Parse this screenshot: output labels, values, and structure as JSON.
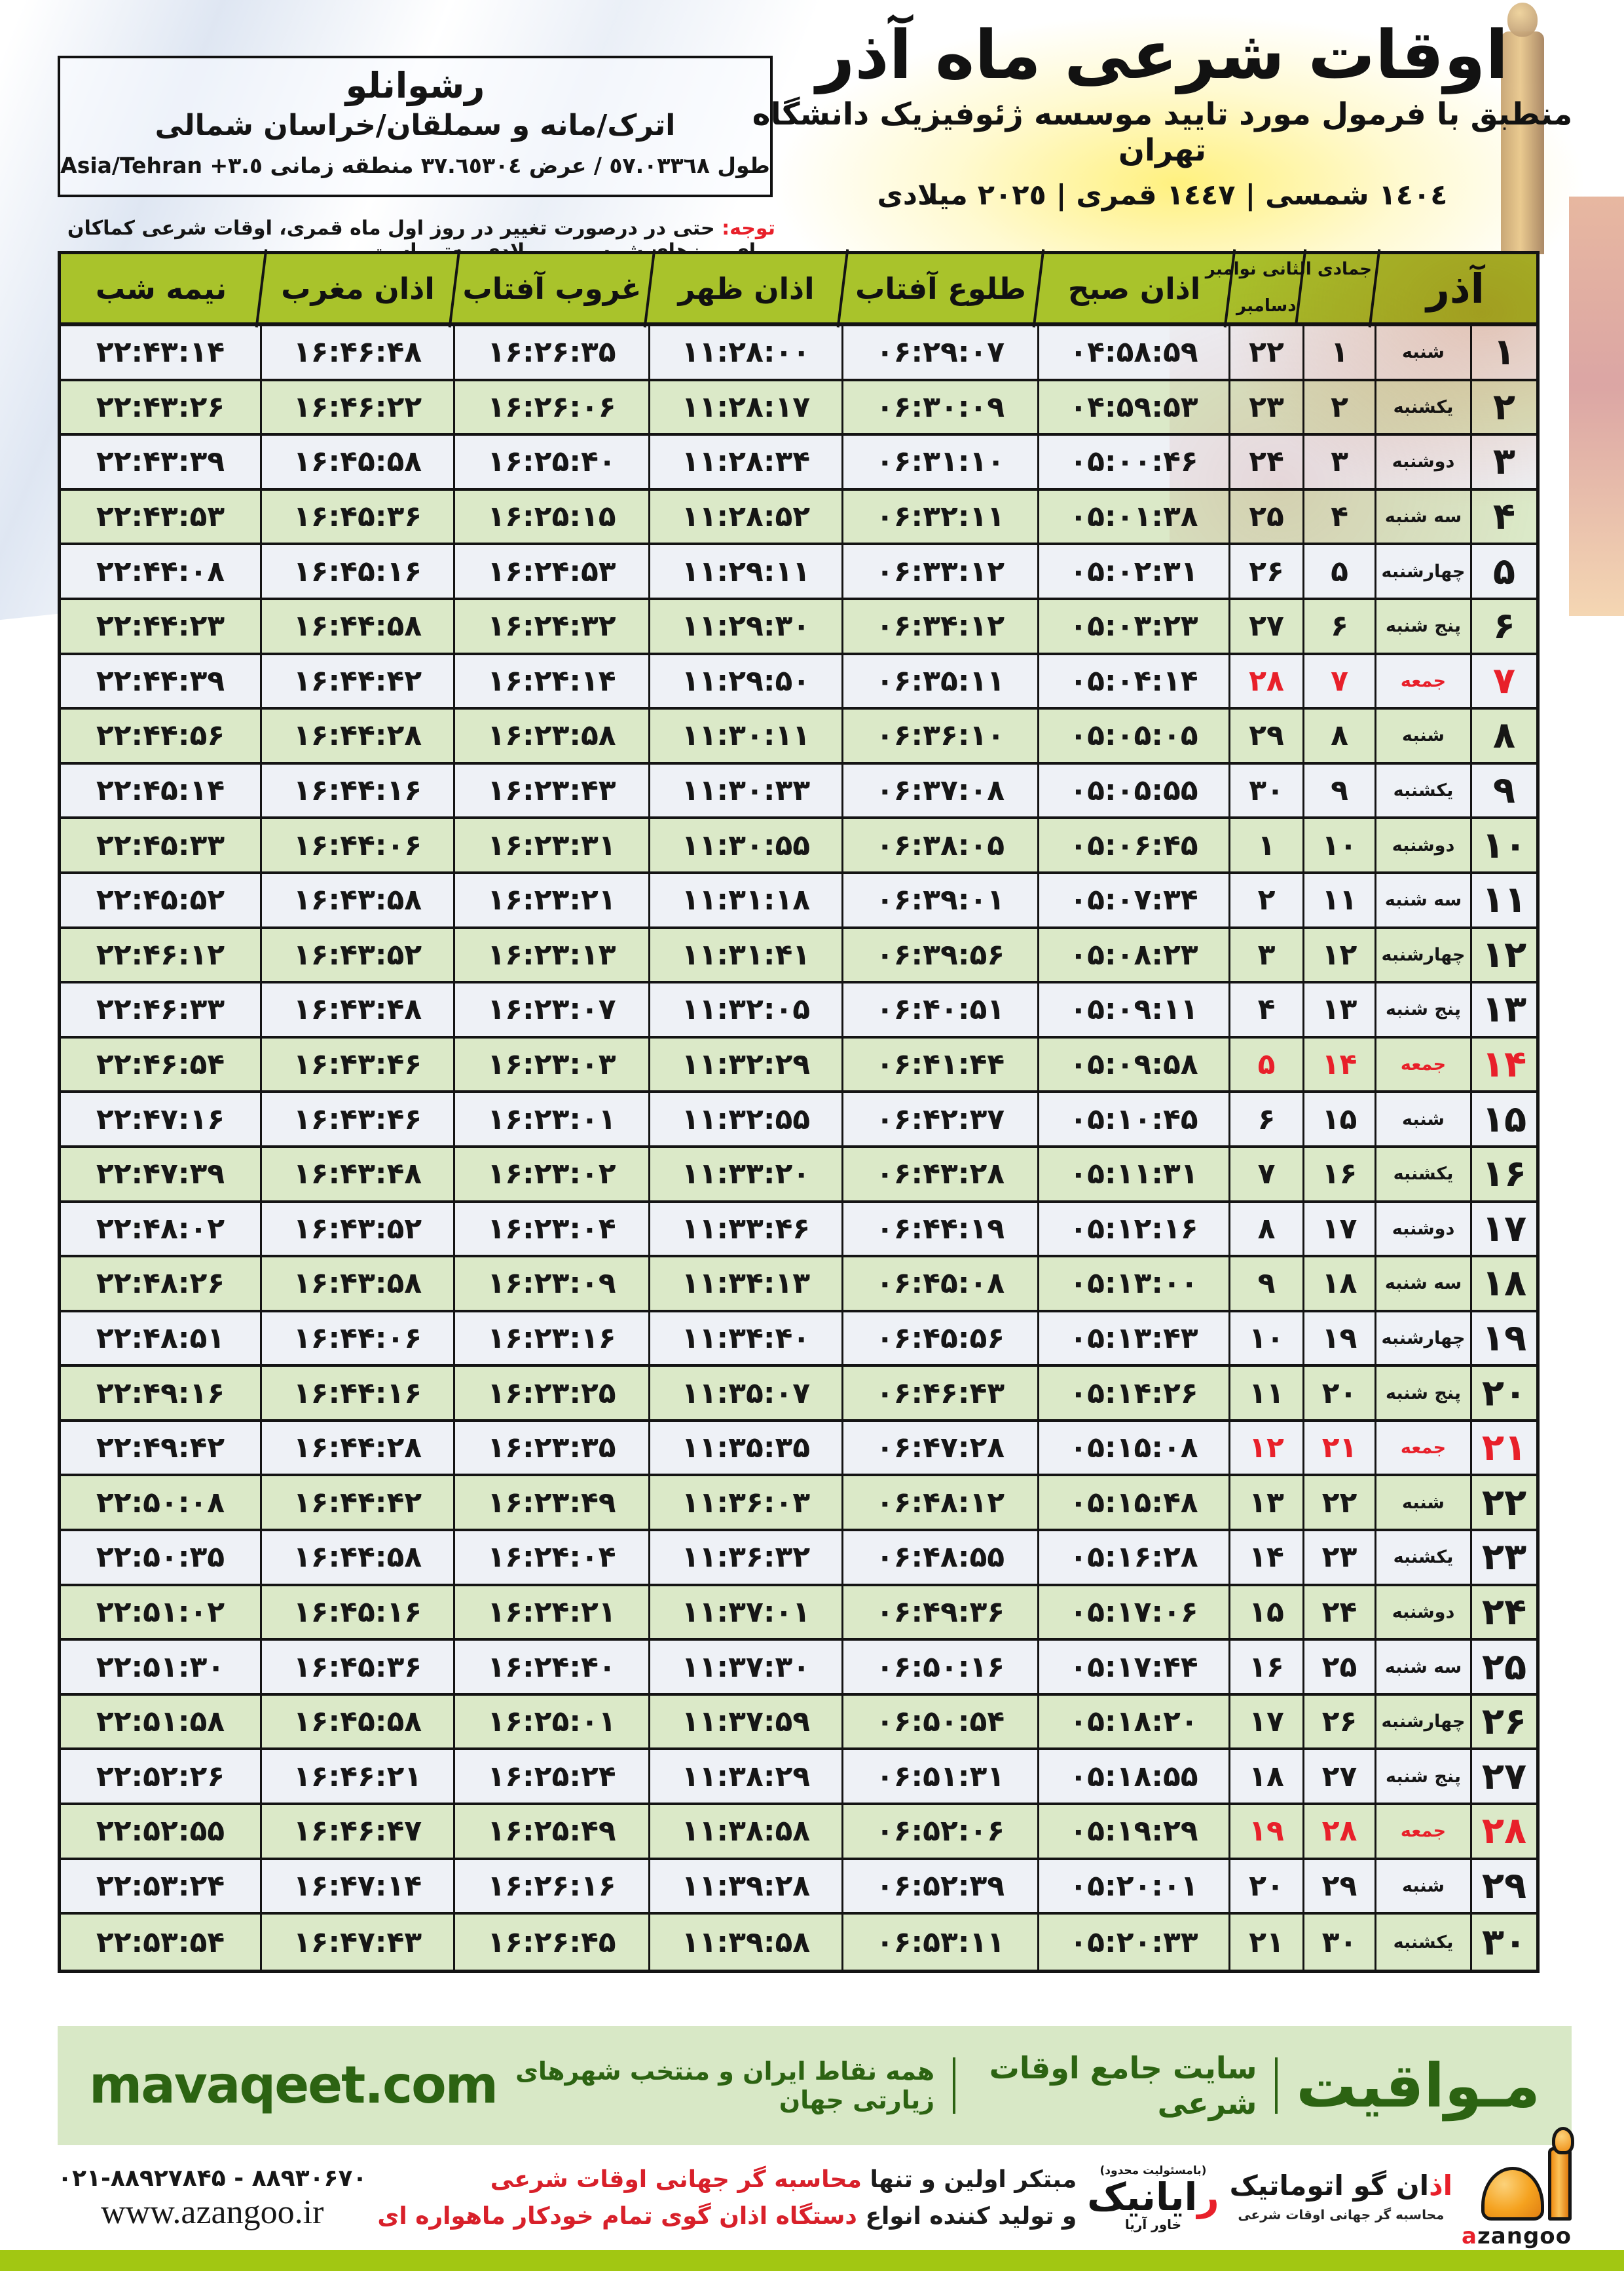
{
  "title": {
    "main": "اوقات شرعی ماه آذر",
    "subtitle": "منطبق با فرمول مورد تایید موسسه ژئوفیزیک دانشگاه تهران",
    "dates": "١٤٠٤ شمسی | ١٤٤٧ قمری | ٢٠٢٥ میلادی"
  },
  "location": {
    "name": "رشوانلو",
    "region": "اترک/مانه و سملقان/خراسان شمالی",
    "coords_fa": "طول ٥٧.٠٣٣٦٨ / عرض ٣٧.٦٥٣٠٤ منطقه زمانی",
    "timezone": "Asia/Tehran +٣.٥"
  },
  "note": {
    "label": "توجه:",
    "text": " حتی در درصورت تغییر در روز اول ماه قمری، اوقات شرعی کماکان برای روزهای شمسی و میلادی معتبر است."
  },
  "table": {
    "month_label": "آذر",
    "hijri_label": "جمادی الثانی",
    "greg_top": "نوامبر",
    "greg_bottom": "دسامبر",
    "columns": {
      "sobh": "اذان صبح",
      "tolu": "طلوع آفتاب",
      "zohr": "اذان ظهر",
      "ghorub": "غروب آفتاب",
      "maghreb": "اذان مغرب",
      "nimeshab": "نیمه شب"
    },
    "rows": [
      {
        "day": "۱",
        "weekday": "شنبه",
        "hijri": "۱",
        "greg": "۲۲",
        "sobh": "۰۴:۵۸:۵۹",
        "tolu": "۰۶:۲۹:۰۷",
        "zohr": "۱۱:۲۸:۰۰",
        "ghorub": "۱۶:۲۶:۳۵",
        "maghreb": "۱۶:۴۶:۴۸",
        "nimeshab": "۲۲:۴۳:۱۴",
        "friday": false
      },
      {
        "day": "۲",
        "weekday": "یکشنبه",
        "hijri": "۲",
        "greg": "۲۳",
        "sobh": "۰۴:۵۹:۵۳",
        "tolu": "۰۶:۳۰:۰۹",
        "zohr": "۱۱:۲۸:۱۷",
        "ghorub": "۱۶:۲۶:۰۶",
        "maghreb": "۱۶:۴۶:۲۲",
        "nimeshab": "۲۲:۴۳:۲۶",
        "friday": false
      },
      {
        "day": "۳",
        "weekday": "دوشنبه",
        "hijri": "۳",
        "greg": "۲۴",
        "sobh": "۰۵:۰۰:۴۶",
        "tolu": "۰۶:۳۱:۱۰",
        "zohr": "۱۱:۲۸:۳۴",
        "ghorub": "۱۶:۲۵:۴۰",
        "maghreb": "۱۶:۴۵:۵۸",
        "nimeshab": "۲۲:۴۳:۳۹",
        "friday": false
      },
      {
        "day": "۴",
        "weekday": "سه شنبه",
        "hijri": "۴",
        "greg": "۲۵",
        "sobh": "۰۵:۰۱:۳۸",
        "tolu": "۰۶:۳۲:۱۱",
        "zohr": "۱۱:۲۸:۵۲",
        "ghorub": "۱۶:۲۵:۱۵",
        "maghreb": "۱۶:۴۵:۳۶",
        "nimeshab": "۲۲:۴۳:۵۳",
        "friday": false
      },
      {
        "day": "۵",
        "weekday": "چهارشنبه",
        "hijri": "۵",
        "greg": "۲۶",
        "sobh": "۰۵:۰۲:۳۱",
        "tolu": "۰۶:۳۳:۱۲",
        "zohr": "۱۱:۲۹:۱۱",
        "ghorub": "۱۶:۲۴:۵۳",
        "maghreb": "۱۶:۴۵:۱۶",
        "nimeshab": "۲۲:۴۴:۰۸",
        "friday": false
      },
      {
        "day": "۶",
        "weekday": "پنج شنبه",
        "hijri": "۶",
        "greg": "۲۷",
        "sobh": "۰۵:۰۳:۲۳",
        "tolu": "۰۶:۳۴:۱۲",
        "zohr": "۱۱:۲۹:۳۰",
        "ghorub": "۱۶:۲۴:۳۲",
        "maghreb": "۱۶:۴۴:۵۸",
        "nimeshab": "۲۲:۴۴:۲۳",
        "friday": false
      },
      {
        "day": "۷",
        "weekday": "جمعه",
        "hijri": "۷",
        "greg": "۲۸",
        "sobh": "۰۵:۰۴:۱۴",
        "tolu": "۰۶:۳۵:۱۱",
        "zohr": "۱۱:۲۹:۵۰",
        "ghorub": "۱۶:۲۴:۱۴",
        "maghreb": "۱۶:۴۴:۴۲",
        "nimeshab": "۲۲:۴۴:۳۹",
        "friday": true
      },
      {
        "day": "۸",
        "weekday": "شنبه",
        "hijri": "۸",
        "greg": "۲۹",
        "sobh": "۰۵:۰۵:۰۵",
        "tolu": "۰۶:۳۶:۱۰",
        "zohr": "۱۱:۳۰:۱۱",
        "ghorub": "۱۶:۲۳:۵۸",
        "maghreb": "۱۶:۴۴:۲۸",
        "nimeshab": "۲۲:۴۴:۵۶",
        "friday": false
      },
      {
        "day": "۹",
        "weekday": "یکشنبه",
        "hijri": "۹",
        "greg": "۳۰",
        "sobh": "۰۵:۰۵:۵۵",
        "tolu": "۰۶:۳۷:۰۸",
        "zohr": "۱۱:۳۰:۳۳",
        "ghorub": "۱۶:۲۳:۴۳",
        "maghreb": "۱۶:۴۴:۱۶",
        "nimeshab": "۲۲:۴۵:۱۴",
        "friday": false
      },
      {
        "day": "۱۰",
        "weekday": "دوشنبه",
        "hijri": "۱۰",
        "greg": "۱",
        "sobh": "۰۵:۰۶:۴۵",
        "tolu": "۰۶:۳۸:۰۵",
        "zohr": "۱۱:۳۰:۵۵",
        "ghorub": "۱۶:۲۳:۳۱",
        "maghreb": "۱۶:۴۴:۰۶",
        "nimeshab": "۲۲:۴۵:۳۳",
        "friday": false
      },
      {
        "day": "۱۱",
        "weekday": "سه شنبه",
        "hijri": "۱۱",
        "greg": "۲",
        "sobh": "۰۵:۰۷:۳۴",
        "tolu": "۰۶:۳۹:۰۱",
        "zohr": "۱۱:۳۱:۱۸",
        "ghorub": "۱۶:۲۳:۲۱",
        "maghreb": "۱۶:۴۳:۵۸",
        "nimeshab": "۲۲:۴۵:۵۲",
        "friday": false
      },
      {
        "day": "۱۲",
        "weekday": "چهارشنبه",
        "hijri": "۱۲",
        "greg": "۳",
        "sobh": "۰۵:۰۸:۲۳",
        "tolu": "۰۶:۳۹:۵۶",
        "zohr": "۱۱:۳۱:۴۱",
        "ghorub": "۱۶:۲۳:۱۳",
        "maghreb": "۱۶:۴۳:۵۲",
        "nimeshab": "۲۲:۴۶:۱۲",
        "friday": false
      },
      {
        "day": "۱۳",
        "weekday": "پنج شنبه",
        "hijri": "۱۳",
        "greg": "۴",
        "sobh": "۰۵:۰۹:۱۱",
        "tolu": "۰۶:۴۰:۵۱",
        "zohr": "۱۱:۳۲:۰۵",
        "ghorub": "۱۶:۲۳:۰۷",
        "maghreb": "۱۶:۴۳:۴۸",
        "nimeshab": "۲۲:۴۶:۳۳",
        "friday": false
      },
      {
        "day": "۱۴",
        "weekday": "جمعه",
        "hijri": "۱۴",
        "greg": "۵",
        "sobh": "۰۵:۰۹:۵۸",
        "tolu": "۰۶:۴۱:۴۴",
        "zohr": "۱۱:۳۲:۲۹",
        "ghorub": "۱۶:۲۳:۰۳",
        "maghreb": "۱۶:۴۳:۴۶",
        "nimeshab": "۲۲:۴۶:۵۴",
        "friday": true
      },
      {
        "day": "۱۵",
        "weekday": "شنبه",
        "hijri": "۱۵",
        "greg": "۶",
        "sobh": "۰۵:۱۰:۴۵",
        "tolu": "۰۶:۴۲:۳۷",
        "zohr": "۱۱:۳۲:۵۵",
        "ghorub": "۱۶:۲۳:۰۱",
        "maghreb": "۱۶:۴۳:۴۶",
        "nimeshab": "۲۲:۴۷:۱۶",
        "friday": false
      },
      {
        "day": "۱۶",
        "weekday": "یکشنبه",
        "hijri": "۱۶",
        "greg": "۷",
        "sobh": "۰۵:۱۱:۳۱",
        "tolu": "۰۶:۴۳:۲۸",
        "zohr": "۱۱:۳۳:۲۰",
        "ghorub": "۱۶:۲۳:۰۲",
        "maghreb": "۱۶:۴۳:۴۸",
        "nimeshab": "۲۲:۴۷:۳۹",
        "friday": false
      },
      {
        "day": "۱۷",
        "weekday": "دوشنبه",
        "hijri": "۱۷",
        "greg": "۸",
        "sobh": "۰۵:۱۲:۱۶",
        "tolu": "۰۶:۴۴:۱۹",
        "zohr": "۱۱:۳۳:۴۶",
        "ghorub": "۱۶:۲۳:۰۴",
        "maghreb": "۱۶:۴۳:۵۲",
        "nimeshab": "۲۲:۴۸:۰۲",
        "friday": false
      },
      {
        "day": "۱۸",
        "weekday": "سه شنبه",
        "hijri": "۱۸",
        "greg": "۹",
        "sobh": "۰۵:۱۳:۰۰",
        "tolu": "۰۶:۴۵:۰۸",
        "zohr": "۱۱:۳۴:۱۳",
        "ghorub": "۱۶:۲۳:۰۹",
        "maghreb": "۱۶:۴۳:۵۸",
        "nimeshab": "۲۲:۴۸:۲۶",
        "friday": false
      },
      {
        "day": "۱۹",
        "weekday": "چهارشنبه",
        "hijri": "۱۹",
        "greg": "۱۰",
        "sobh": "۰۵:۱۳:۴۳",
        "tolu": "۰۶:۴۵:۵۶",
        "zohr": "۱۱:۳۴:۴۰",
        "ghorub": "۱۶:۲۳:۱۶",
        "maghreb": "۱۶:۴۴:۰۶",
        "nimeshab": "۲۲:۴۸:۵۱",
        "friday": false
      },
      {
        "day": "۲۰",
        "weekday": "پنج شنبه",
        "hijri": "۲۰",
        "greg": "۱۱",
        "sobh": "۰۵:۱۴:۲۶",
        "tolu": "۰۶:۴۶:۴۳",
        "zohr": "۱۱:۳۵:۰۷",
        "ghorub": "۱۶:۲۳:۲۵",
        "maghreb": "۱۶:۴۴:۱۶",
        "nimeshab": "۲۲:۴۹:۱۶",
        "friday": false
      },
      {
        "day": "۲۱",
        "weekday": "جمعه",
        "hijri": "۲۱",
        "greg": "۱۲",
        "sobh": "۰۵:۱۵:۰۸",
        "tolu": "۰۶:۴۷:۲۸",
        "zohr": "۱۱:۳۵:۳۵",
        "ghorub": "۱۶:۲۳:۳۵",
        "maghreb": "۱۶:۴۴:۲۸",
        "nimeshab": "۲۲:۴۹:۴۲",
        "friday": true
      },
      {
        "day": "۲۲",
        "weekday": "شنبه",
        "hijri": "۲۲",
        "greg": "۱۳",
        "sobh": "۰۵:۱۵:۴۸",
        "tolu": "۰۶:۴۸:۱۲",
        "zohr": "۱۱:۳۶:۰۳",
        "ghorub": "۱۶:۲۳:۴۹",
        "maghreb": "۱۶:۴۴:۴۲",
        "nimeshab": "۲۲:۵۰:۰۸",
        "friday": false
      },
      {
        "day": "۲۳",
        "weekday": "یکشنبه",
        "hijri": "۲۳",
        "greg": "۱۴",
        "sobh": "۰۵:۱۶:۲۸",
        "tolu": "۰۶:۴۸:۵۵",
        "zohr": "۱۱:۳۶:۳۲",
        "ghorub": "۱۶:۲۴:۰۴",
        "maghreb": "۱۶:۴۴:۵۸",
        "nimeshab": "۲۲:۵۰:۳۵",
        "friday": false
      },
      {
        "day": "۲۴",
        "weekday": "دوشنبه",
        "hijri": "۲۴",
        "greg": "۱۵",
        "sobh": "۰۵:۱۷:۰۶",
        "tolu": "۰۶:۴۹:۳۶",
        "zohr": "۱۱:۳۷:۰۱",
        "ghorub": "۱۶:۲۴:۲۱",
        "maghreb": "۱۶:۴۵:۱۶",
        "nimeshab": "۲۲:۵۱:۰۲",
        "friday": false
      },
      {
        "day": "۲۵",
        "weekday": "سه شنبه",
        "hijri": "۲۵",
        "greg": "۱۶",
        "sobh": "۰۵:۱۷:۴۴",
        "tolu": "۰۶:۵۰:۱۶",
        "zohr": "۱۱:۳۷:۳۰",
        "ghorub": "۱۶:۲۴:۴۰",
        "maghreb": "۱۶:۴۵:۳۶",
        "nimeshab": "۲۲:۵۱:۳۰",
        "friday": false
      },
      {
        "day": "۲۶",
        "weekday": "چهارشنبه",
        "hijri": "۲۶",
        "greg": "۱۷",
        "sobh": "۰۵:۱۸:۲۰",
        "tolu": "۰۶:۵۰:۵۴",
        "zohr": "۱۱:۳۷:۵۹",
        "ghorub": "۱۶:۲۵:۰۱",
        "maghreb": "۱۶:۴۵:۵۸",
        "nimeshab": "۲۲:۵۱:۵۸",
        "friday": false
      },
      {
        "day": "۲۷",
        "weekday": "پنج شنبه",
        "hijri": "۲۷",
        "greg": "۱۸",
        "sobh": "۰۵:۱۸:۵۵",
        "tolu": "۰۶:۵۱:۳۱",
        "zohr": "۱۱:۳۸:۲۹",
        "ghorub": "۱۶:۲۵:۲۴",
        "maghreb": "۱۶:۴۶:۲۱",
        "nimeshab": "۲۲:۵۲:۲۶",
        "friday": false
      },
      {
        "day": "۲۸",
        "weekday": "جمعه",
        "hijri": "۲۸",
        "greg": "۱۹",
        "sobh": "۰۵:۱۹:۲۹",
        "tolu": "۰۶:۵۲:۰۶",
        "zohr": "۱۱:۳۸:۵۸",
        "ghorub": "۱۶:۲۵:۴۹",
        "maghreb": "۱۶:۴۶:۴۷",
        "nimeshab": "۲۲:۵۲:۵۵",
        "friday": true
      },
      {
        "day": "۲۹",
        "weekday": "شنبه",
        "hijri": "۲۹",
        "greg": "۲۰",
        "sobh": "۰۵:۲۰:۰۱",
        "tolu": "۰۶:۵۲:۳۹",
        "zohr": "۱۱:۳۹:۲۸",
        "ghorub": "۱۶:۲۶:۱۶",
        "maghreb": "۱۶:۴۷:۱۴",
        "nimeshab": "۲۲:۵۳:۲۴",
        "friday": false
      },
      {
        "day": "۳۰",
        "weekday": "یکشنبه",
        "hijri": "۳۰",
        "greg": "۲۱",
        "sobh": "۰۵:۲۰:۳۳",
        "tolu": "۰۶:۵۳:۱۱",
        "zohr": "۱۱:۳۹:۵۸",
        "ghorub": "۱۶:۲۶:۴۵",
        "maghreb": "۱۶:۴۷:۴۳",
        "nimeshab": "۲۲:۵۳:۵۴",
        "friday": false
      }
    ]
  },
  "footer": {
    "brand": "مـواقیت",
    "tag1": "سایت جامع اوقات شرعی",
    "tag2": "همه نقاط ایران و منتخب شهرهای زیارتی جهان",
    "site_en": "mavaqeet.com"
  },
  "bottom": {
    "phones": "۰۲۱-۸۸۹۲۷۸۴۵ - ۸۸۹۳۰۶۷۰",
    "url": "www.azangoo.ir",
    "slogan1_black": "مبتکر اولین و تنها ",
    "slogan1_red": "محاسبه گر جهانی اوقات شرعی",
    "slogan2_black": "و تولید کننده انواع ",
    "slogan2_red": "دستگاه اذان گوی تمام خودکار ماهواره ای",
    "rayanik_small": "(بامسئولیت محدود)",
    "rayanik_red": "ر",
    "rayanik_rest": "ایانیک",
    "rayanik_side": "خاور آریا",
    "azangoo_fa_red": "اذ",
    "azangoo_fa_rest": "ان گو اتوماتیک",
    "azangoo_sub": "محاسبه گر جهانی اوقات شرعی",
    "azangoo_en_red": "a",
    "azangoo_en_rest": "zangoo"
  },
  "colors": {
    "red": "#e8202a",
    "header_green": "#a9c32b",
    "row_green": "#dbe9c8",
    "row_light": "#eef1f6",
    "footer_bg": "#d8e8c6",
    "footer_text": "#2c6312",
    "lime_bar": "#a2c712",
    "logo_orange": "#f5a21f"
  }
}
